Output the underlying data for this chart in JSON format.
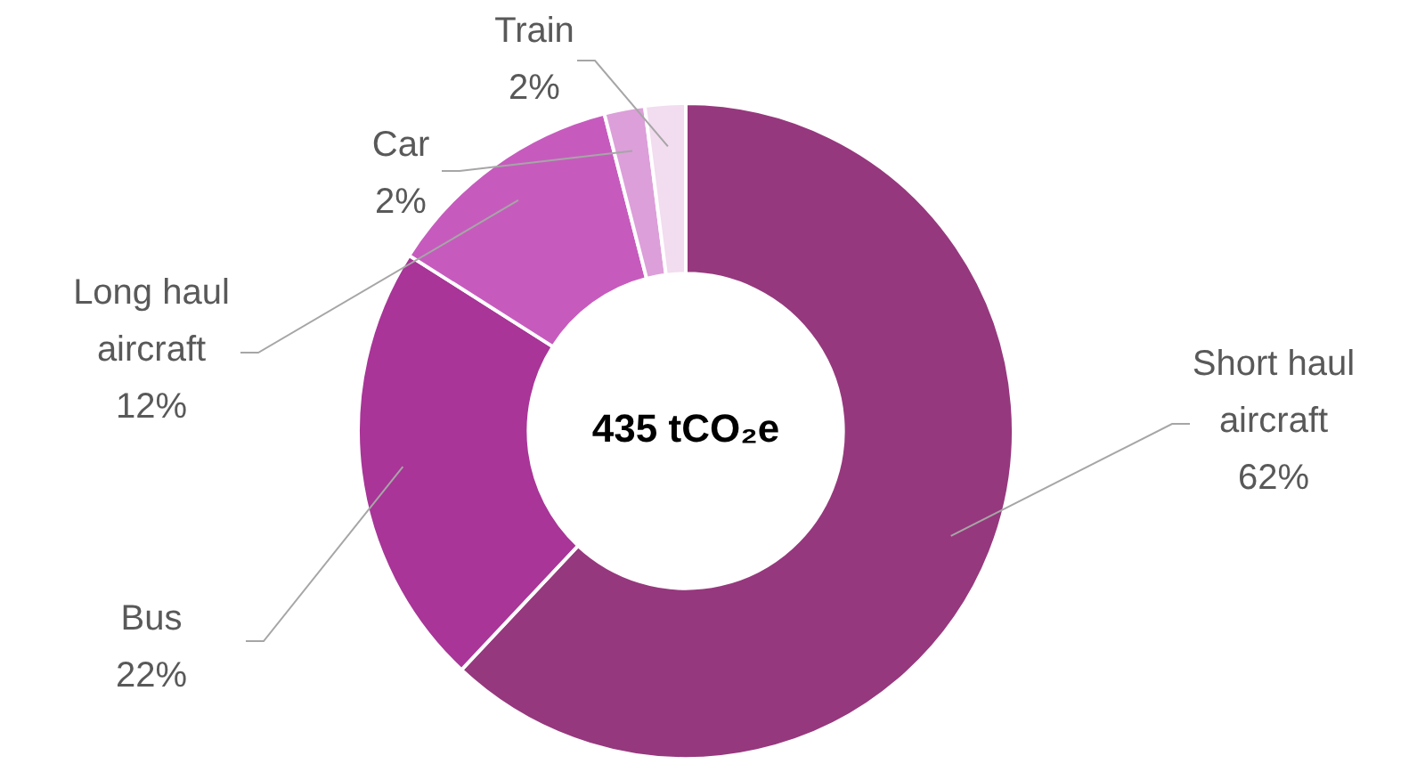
{
  "chart_data": {
    "type": "donut",
    "categories": [
      "Short haul aircraft",
      "Bus",
      "Long haul aircraft",
      "Car",
      "Train"
    ],
    "values": [
      62,
      22,
      12,
      2,
      2
    ],
    "value_labels": [
      "62%",
      "22%",
      "12%",
      "2%",
      "2%"
    ],
    "colors": [
      "#96387d",
      "#a83597",
      "#c65bbd",
      "#dc9fd9",
      "#f2dcef"
    ],
    "annotations": [
      "435 tCO₂e"
    ],
    "legend": false
  }
}
